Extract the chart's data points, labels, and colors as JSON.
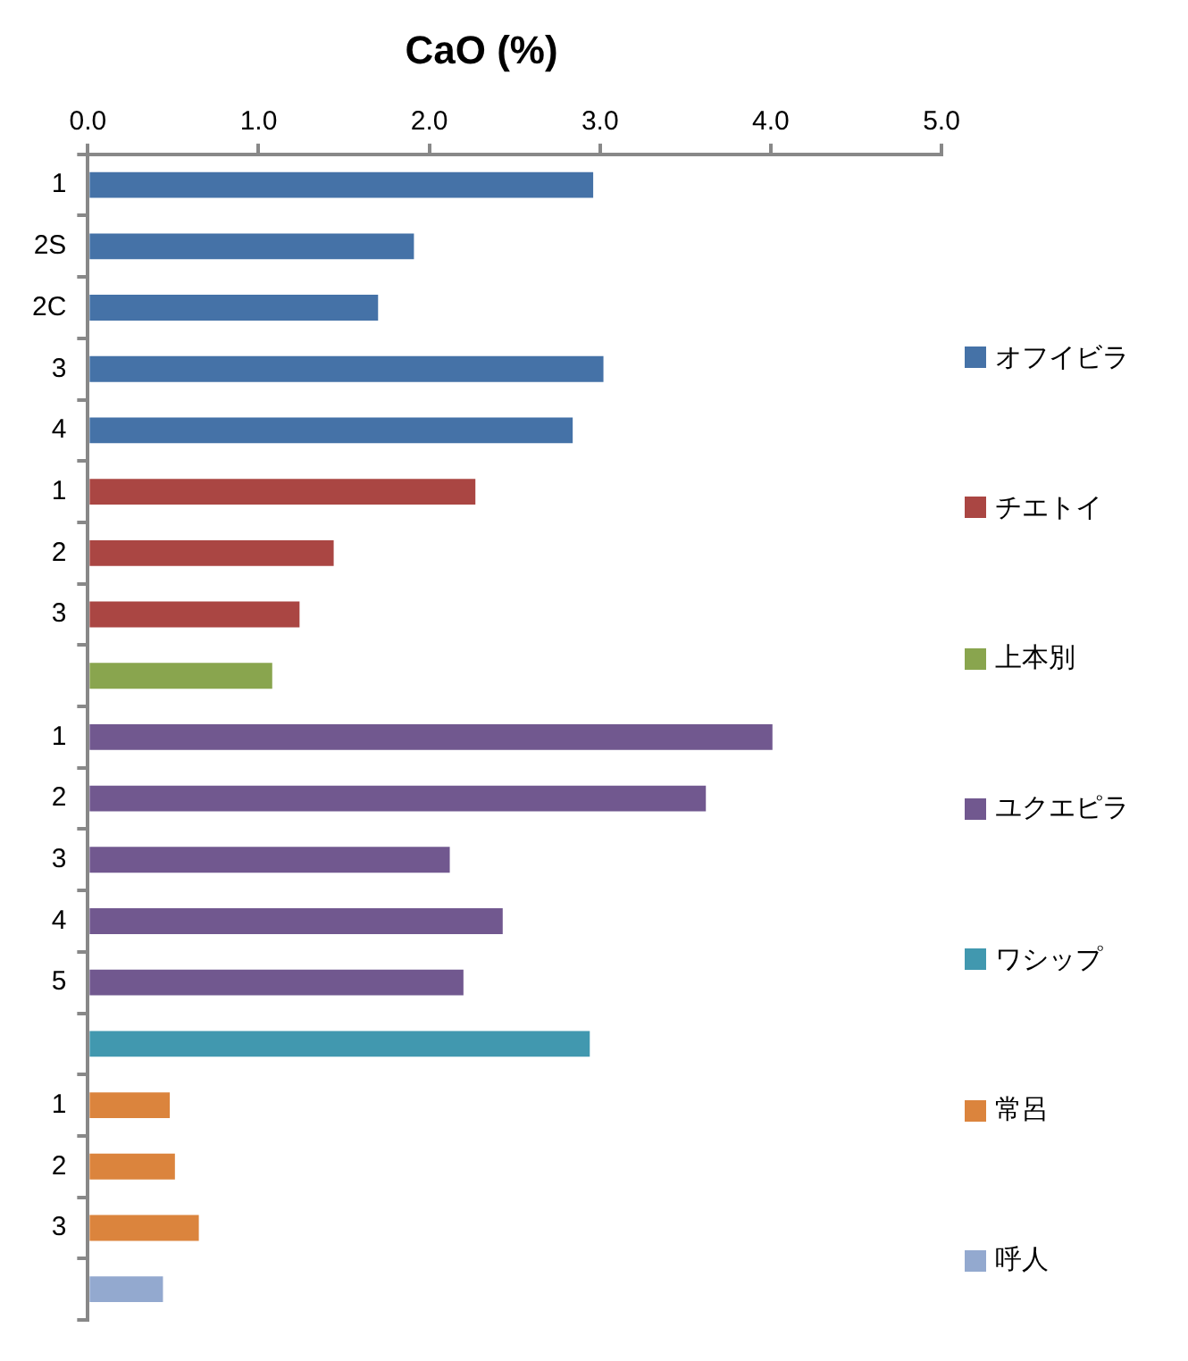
{
  "chart_data": {
    "type": "bar",
    "orientation": "horizontal",
    "title": "CaO (%)",
    "categories": [
      "1",
      "2S",
      "2C",
      "3",
      "4",
      "1",
      "2",
      "3",
      null,
      "1",
      "2",
      "3",
      "4",
      "5",
      null,
      "1",
      "2",
      "3",
      null
    ],
    "series": [
      {
        "name": "オフイビラ",
        "color": "#4572a7",
        "values": [
          2.96,
          1.91,
          1.7,
          3.02,
          2.84,
          null,
          null,
          null,
          null,
          null,
          null,
          null,
          null,
          null,
          null,
          null,
          null,
          null,
          null
        ]
      },
      {
        "name": "チエトイ",
        "color": "#aa4643",
        "values": [
          null,
          null,
          null,
          null,
          null,
          2.27,
          1.44,
          1.24,
          null,
          null,
          null,
          null,
          null,
          null,
          null,
          null,
          null,
          null,
          null
        ]
      },
      {
        "name": "上本別",
        "color": "#89a54e",
        "values": [
          null,
          null,
          null,
          null,
          null,
          null,
          null,
          null,
          1.08,
          null,
          null,
          null,
          null,
          null,
          null,
          null,
          null,
          null,
          null
        ]
      },
      {
        "name": "ユクエピラ",
        "color": "#71588f",
        "values": [
          null,
          null,
          null,
          null,
          null,
          null,
          null,
          null,
          null,
          4.01,
          3.62,
          2.12,
          2.43,
          2.2,
          null,
          null,
          null,
          null,
          null
        ]
      },
      {
        "name": "ワシップ",
        "color": "#4198af",
        "values": [
          null,
          null,
          null,
          null,
          null,
          null,
          null,
          null,
          null,
          null,
          null,
          null,
          null,
          null,
          2.94,
          null,
          null,
          null,
          null
        ]
      },
      {
        "name": "常呂",
        "color": "#db843d",
        "values": [
          null,
          null,
          null,
          null,
          null,
          null,
          null,
          null,
          null,
          null,
          null,
          null,
          null,
          null,
          null,
          0.48,
          0.51,
          0.65,
          null
        ]
      },
      {
        "name": "呼人",
        "color": "#93a9cf",
        "values": [
          null,
          null,
          null,
          null,
          null,
          null,
          null,
          null,
          null,
          null,
          null,
          null,
          null,
          null,
          null,
          null,
          null,
          null,
          0.44
        ]
      }
    ],
    "xlim": [
      0,
      5
    ],
    "xticks": [
      {
        "value": 0,
        "label": "0.0"
      },
      {
        "value": 1,
        "label": "1.0"
      },
      {
        "value": 2,
        "label": "2.0"
      },
      {
        "value": 3,
        "label": "3.0"
      },
      {
        "value": 4,
        "label": "4.0"
      },
      {
        "value": 5,
        "label": "5.0"
      }
    ],
    "grid": false,
    "legend": "right"
  }
}
